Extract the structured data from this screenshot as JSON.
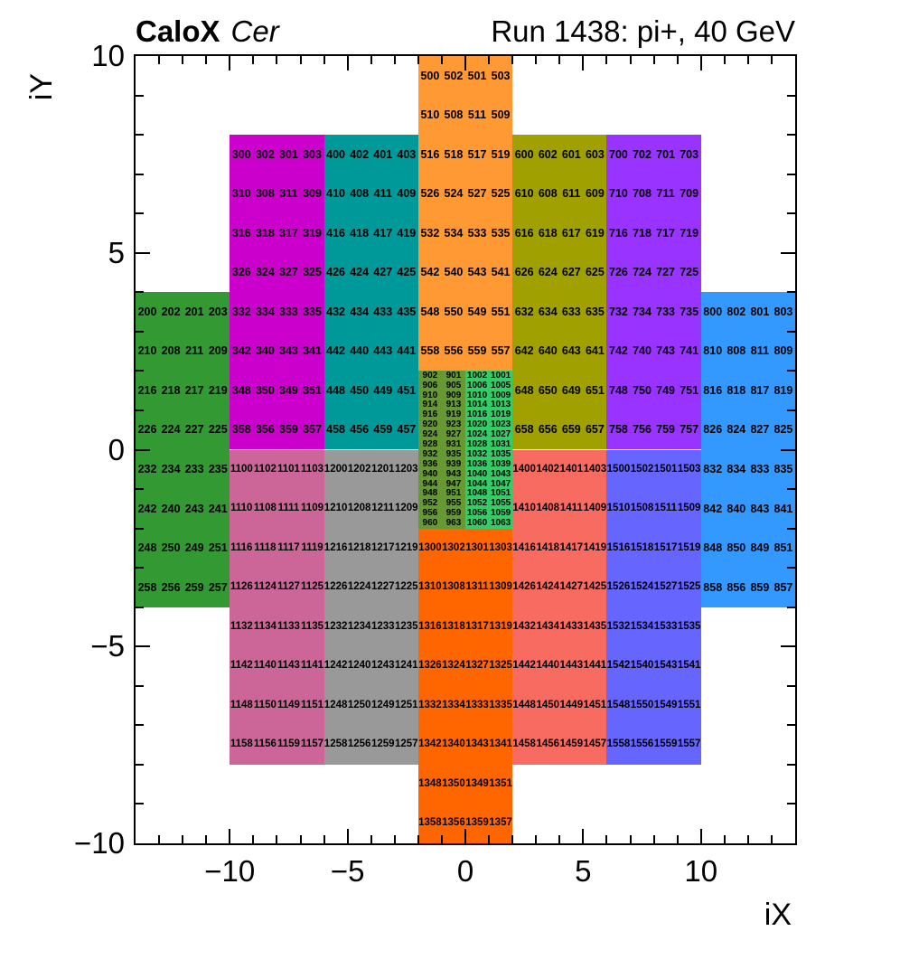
{
  "header": {
    "title_bold": "CaloX",
    "title_italic": "Cer",
    "title_right": "Run 1438: pi+, 40 GeV"
  },
  "chart_data": {
    "type": "heatmap",
    "title": "CaloX Cer — Run 1438: pi+, 40 GeV",
    "xlabel": "iX",
    "ylabel": "iY",
    "x_range": [
      -14,
      14
    ],
    "y_range": [
      -10,
      10
    ],
    "grid": false,
    "x_major_ticks": [
      -10,
      -5,
      0,
      5,
      10
    ],
    "x_major_labels": [
      "−10",
      "−5",
      "0",
      "5",
      "10"
    ],
    "y_major_ticks": [
      -10,
      -5,
      0,
      5,
      10
    ],
    "y_major_labels": [
      "−10",
      "−5",
      "0",
      "5",
      "10"
    ],
    "minor_tick_step": 1,
    "modules": [
      {
        "id": "200",
        "color": "#339933",
        "x0": -14,
        "y_top": 4,
        "cols": 4,
        "rows": 8,
        "row_h": 1,
        "values": [
          [
            200,
            202,
            201,
            203
          ],
          [
            210,
            208,
            211,
            209
          ],
          [
            216,
            218,
            217,
            219
          ],
          [
            226,
            224,
            227,
            225
          ],
          [
            232,
            234,
            233,
            235
          ],
          [
            242,
            240,
            243,
            241
          ],
          [
            248,
            250,
            249,
            251
          ],
          [
            258,
            256,
            259,
            257
          ]
        ]
      },
      {
        "id": "300",
        "color": "#CC00CC",
        "x0": -10,
        "y_top": 8,
        "cols": 4,
        "rows": 8,
        "row_h": 1,
        "values": [
          [
            300,
            302,
            301,
            303
          ],
          [
            310,
            308,
            311,
            309
          ],
          [
            316,
            318,
            317,
            319
          ],
          [
            326,
            324,
            327,
            325
          ],
          [
            332,
            334,
            333,
            335
          ],
          [
            342,
            340,
            343,
            341
          ],
          [
            348,
            350,
            349,
            351
          ],
          [
            358,
            356,
            359,
            357
          ]
        ]
      },
      {
        "id": "400",
        "color": "#009999",
        "x0": -6,
        "y_top": 8,
        "cols": 4,
        "rows": 8,
        "row_h": 1,
        "values": [
          [
            400,
            402,
            401,
            403
          ],
          [
            410,
            408,
            411,
            409
          ],
          [
            416,
            418,
            417,
            419
          ],
          [
            426,
            424,
            427,
            425
          ],
          [
            432,
            434,
            433,
            435
          ],
          [
            442,
            440,
            443,
            441
          ],
          [
            448,
            450,
            449,
            451
          ],
          [
            458,
            456,
            459,
            457
          ]
        ]
      },
      {
        "id": "500",
        "color": "#FF9933",
        "x0": -2,
        "y_top": 10,
        "cols": 4,
        "rows": 8,
        "row_h": 1,
        "values": [
          [
            500,
            502,
            501,
            503
          ],
          [
            510,
            508,
            511,
            509
          ],
          [
            516,
            518,
            517,
            519
          ],
          [
            526,
            524,
            527,
            525
          ],
          [
            532,
            534,
            533,
            535
          ],
          [
            542,
            540,
            543,
            541
          ],
          [
            548,
            550,
            549,
            551
          ],
          [
            558,
            556,
            559,
            557
          ]
        ]
      },
      {
        "id": "600",
        "color": "#A0A000",
        "x0": 2,
        "y_top": 8,
        "cols": 4,
        "rows": 8,
        "row_h": 1,
        "values": [
          [
            600,
            602,
            601,
            603
          ],
          [
            610,
            608,
            611,
            609
          ],
          [
            616,
            618,
            617,
            619
          ],
          [
            626,
            624,
            627,
            625
          ],
          [
            632,
            634,
            633,
            635
          ],
          [
            642,
            640,
            643,
            641
          ],
          [
            648,
            650,
            649,
            651
          ],
          [
            658,
            656,
            659,
            657
          ]
        ]
      },
      {
        "id": "700",
        "color": "#9933FF",
        "x0": 6,
        "y_top": 8,
        "cols": 4,
        "rows": 8,
        "row_h": 1,
        "values": [
          [
            700,
            702,
            701,
            703
          ],
          [
            710,
            708,
            711,
            709
          ],
          [
            716,
            718,
            717,
            719
          ],
          [
            726,
            724,
            727,
            725
          ],
          [
            732,
            734,
            733,
            735
          ],
          [
            742,
            740,
            743,
            741
          ],
          [
            748,
            750,
            749,
            751
          ],
          [
            758,
            756,
            759,
            757
          ]
        ]
      },
      {
        "id": "800",
        "color": "#3399FF",
        "x0": 10,
        "y_top": 4,
        "cols": 4,
        "rows": 8,
        "row_h": 1,
        "values": [
          [
            800,
            802,
            801,
            803
          ],
          [
            810,
            808,
            811,
            809
          ],
          [
            816,
            818,
            817,
            819
          ],
          [
            826,
            824,
            827,
            825
          ],
          [
            832,
            834,
            833,
            835
          ],
          [
            842,
            840,
            843,
            841
          ],
          [
            848,
            850,
            849,
            851
          ],
          [
            858,
            856,
            859,
            857
          ]
        ]
      },
      {
        "id": "900",
        "color": "#669933",
        "x0": -2,
        "y_top": 2,
        "cols": 2,
        "rows": 16,
        "row_h": 0.25,
        "values": [
          [
            902,
            901
          ],
          [
            906,
            905
          ],
          [
            910,
            909
          ],
          [
            914,
            913
          ],
          [
            916,
            919
          ],
          [
            920,
            923
          ],
          [
            924,
            927
          ],
          [
            928,
            931
          ],
          [
            932,
            935
          ],
          [
            936,
            939
          ],
          [
            940,
            943
          ],
          [
            944,
            947
          ],
          [
            948,
            951
          ],
          [
            952,
            955
          ],
          [
            956,
            959
          ],
          [
            960,
            963
          ]
        ]
      },
      {
        "id": "1000",
        "color": "#33CC66",
        "x0": 0,
        "y_top": 2,
        "cols": 2,
        "rows": 16,
        "row_h": 0.25,
        "values": [
          [
            1002,
            1001
          ],
          [
            1006,
            1005
          ],
          [
            1010,
            1009
          ],
          [
            1014,
            1013
          ],
          [
            1016,
            1019
          ],
          [
            1020,
            1023
          ],
          [
            1024,
            1027
          ],
          [
            1028,
            1031
          ],
          [
            1032,
            1035
          ],
          [
            1036,
            1039
          ],
          [
            1040,
            1043
          ],
          [
            1044,
            1047
          ],
          [
            1048,
            1051
          ],
          [
            1052,
            1055
          ],
          [
            1056,
            1059
          ],
          [
            1060,
            1063
          ]
        ]
      },
      {
        "id": "1100",
        "color": "#CC6699",
        "x0": -10,
        "y_top": 0,
        "cols": 4,
        "rows": 8,
        "row_h": 1,
        "values": [
          [
            1100,
            1102,
            1101,
            1103
          ],
          [
            1110,
            1108,
            1111,
            1109
          ],
          [
            1116,
            1118,
            1117,
            1119
          ],
          [
            1126,
            1124,
            1127,
            1125
          ],
          [
            1132,
            1134,
            1133,
            1135
          ],
          [
            1142,
            1140,
            1143,
            1141
          ],
          [
            1148,
            1150,
            1149,
            1151
          ],
          [
            1158,
            1156,
            1159,
            1157
          ]
        ]
      },
      {
        "id": "1200",
        "color": "#999999",
        "x0": -6,
        "y_top": 0,
        "cols": 4,
        "rows": 8,
        "row_h": 1,
        "values": [
          [
            1200,
            1202,
            1201,
            1203
          ],
          [
            1210,
            1208,
            1211,
            1209
          ],
          [
            1216,
            1218,
            1217,
            1219
          ],
          [
            1226,
            1224,
            1227,
            1225
          ],
          [
            1232,
            1234,
            1233,
            1235
          ],
          [
            1242,
            1240,
            1243,
            1241
          ],
          [
            1248,
            1250,
            1249,
            1251
          ],
          [
            1258,
            1256,
            1259,
            1257
          ]
        ]
      },
      {
        "id": "1300",
        "color": "#FF6600",
        "x0": -2,
        "y_top": -2,
        "cols": 4,
        "rows": 8,
        "row_h": 1,
        "values": [
          [
            1300,
            1302,
            1301,
            1303
          ],
          [
            1310,
            1308,
            1311,
            1309
          ],
          [
            1316,
            1318,
            1317,
            1319
          ],
          [
            1326,
            1324,
            1327,
            1325
          ],
          [
            1332,
            1334,
            1333,
            1335
          ],
          [
            1342,
            1340,
            1343,
            1341
          ],
          [
            1348,
            1350,
            1349,
            1351
          ],
          [
            1358,
            1356,
            1359,
            1357
          ]
        ]
      },
      {
        "id": "1400",
        "color": "#F76B61",
        "x0": 2,
        "y_top": 0,
        "cols": 4,
        "rows": 8,
        "row_h": 1,
        "values": [
          [
            1400,
            1402,
            1401,
            1403
          ],
          [
            1410,
            1408,
            1411,
            1409
          ],
          [
            1416,
            1418,
            1417,
            1419
          ],
          [
            1426,
            1424,
            1427,
            1425
          ],
          [
            1432,
            1434,
            1433,
            1435
          ],
          [
            1442,
            1440,
            1443,
            1441
          ],
          [
            1448,
            1450,
            1449,
            1451
          ],
          [
            1458,
            1456,
            1459,
            1457
          ]
        ]
      },
      {
        "id": "1500",
        "color": "#6666FF",
        "x0": 6,
        "y_top": 0,
        "cols": 4,
        "rows": 8,
        "row_h": 1,
        "values": [
          [
            1500,
            1502,
            1501,
            1503
          ],
          [
            1510,
            1508,
            1511,
            1509
          ],
          [
            1516,
            1518,
            1517,
            1519
          ],
          [
            1526,
            1524,
            1527,
            1525
          ],
          [
            1532,
            1534,
            1533,
            1535
          ],
          [
            1542,
            1540,
            1543,
            1541
          ],
          [
            1548,
            1550,
            1549,
            1551
          ],
          [
            1558,
            1556,
            1559,
            1557
          ]
        ]
      }
    ]
  }
}
